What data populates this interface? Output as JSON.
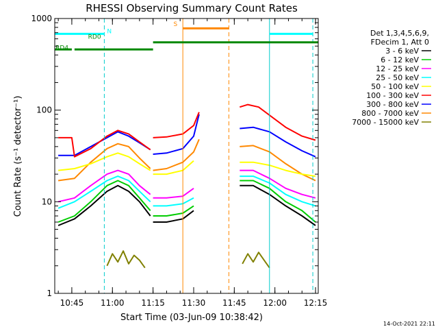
{
  "chart_data": {
    "type": "line",
    "title": "RHESSI Observing Summary Count Rates",
    "xlabel": "Start Time (03-Jun-09 10:38:42)",
    "ylabel": "Count Rate (s⁻¹ detector⁻¹)",
    "yscale": "log",
    "ylim": [
      1,
      1000
    ],
    "xlim": [
      "10:38:42",
      "12:16:00"
    ],
    "yticks": [
      {
        "value": 1,
        "label": "1"
      },
      {
        "value": 10,
        "label": "10"
      },
      {
        "value": 100,
        "label": "100"
      },
      {
        "value": 1000,
        "label": "1000"
      }
    ],
    "xticks": [
      "10:45",
      "11:00",
      "11:15",
      "11:30",
      "11:45",
      "12:00",
      "12:15"
    ],
    "timestamp": "14-Oct-2021 22:11",
    "legend": {
      "placement": "right",
      "header": [
        "Det 1,3,4,5,6,9,",
        "FDecim 1, Att 0"
      ]
    },
    "series": [
      {
        "name": "3 - 6 keV",
        "color": "#000000",
        "segments": [
          {
            "x": [
              "10:40",
              "10:46",
              "10:52",
              "10:58",
              "11:02",
              "11:06",
              "11:10",
              "11:14"
            ],
            "y": [
              5.5,
              6.5,
              9,
              13,
              15,
              13,
              10,
              7
            ]
          },
          {
            "x": [
              "11:15",
              "11:20",
              "11:26",
              "11:30"
            ],
            "y": [
              6,
              6,
              6.5,
              8
            ]
          },
          {
            "x": [
              "11:47",
              "11:52",
              "11:58",
              "12:04",
              "12:10",
              "12:15"
            ],
            "y": [
              15,
              15,
              12,
              9,
              7,
              5.5
            ]
          }
        ]
      },
      {
        "name": "6 - 12 keV",
        "color": "#00cc00",
        "segments": [
          {
            "x": [
              "10:40",
              "10:46",
              "10:52",
              "10:58",
              "11:02",
              "11:06",
              "11:10",
              "11:14"
            ],
            "y": [
              6,
              7,
              10,
              15,
              17,
              15,
              11,
              8
            ]
          },
          {
            "x": [
              "11:15",
              "11:20",
              "11:26",
              "11:30"
            ],
            "y": [
              7,
              7,
              7.5,
              9
            ]
          },
          {
            "x": [
              "11:47",
              "11:52",
              "11:58",
              "12:04",
              "12:10",
              "12:15"
            ],
            "y": [
              17,
              17,
              14,
              10,
              8,
              6
            ]
          }
        ]
      },
      {
        "name": "12 - 25 keV",
        "color": "#ff00ff",
        "segments": [
          {
            "x": [
              "10:40",
              "10:46",
              "10:52",
              "10:58",
              "11:02",
              "11:06",
              "11:10",
              "11:14"
            ],
            "y": [
              10,
              11,
              15,
              20,
              22,
              20,
              15,
              12
            ]
          },
          {
            "x": [
              "11:15",
              "11:20",
              "11:26",
              "11:30"
            ],
            "y": [
              11,
              11,
              11.5,
              14
            ]
          },
          {
            "x": [
              "11:47",
              "11:52",
              "11:58",
              "12:04",
              "12:10",
              "12:15"
            ],
            "y": [
              22,
              22,
              18,
              14,
              12,
              11
            ]
          }
        ]
      },
      {
        "name": "25 - 50 keV",
        "color": "#00ffff",
        "segments": [
          {
            "x": [
              "10:40",
              "10:46",
              "10:52",
              "10:58",
              "11:02",
              "11:06",
              "11:10",
              "11:14"
            ],
            "y": [
              8.5,
              10,
              13,
              17,
              19,
              17,
              13,
              10
            ]
          },
          {
            "x": [
              "11:15",
              "11:20",
              "11:26",
              "11:30"
            ],
            "y": [
              9,
              9,
              9.5,
              11
            ]
          },
          {
            "x": [
              "11:47",
              "11:52",
              "11:58",
              "12:04",
              "12:10",
              "12:15"
            ],
            "y": [
              19,
              19,
              16,
              12,
              10,
              9
            ]
          }
        ]
      },
      {
        "name": "50 - 100 keV",
        "color": "#ffff00",
        "segments": [
          {
            "x": [
              "10:40",
              "10:46",
              "10:52",
              "10:58",
              "11:02",
              "11:06",
              "11:10",
              "11:14"
            ],
            "y": [
              22,
              23,
              26,
              31,
              34,
              31,
              26,
              22
            ]
          },
          {
            "x": [
              "11:15",
              "11:20",
              "11:26",
              "11:30"
            ],
            "y": [
              20,
              20,
              22,
              28
            ]
          },
          {
            "x": [
              "11:47",
              "11:52",
              "11:58",
              "12:04",
              "12:10",
              "12:15"
            ],
            "y": [
              27,
              27,
              25,
              22,
              20,
              19
            ]
          }
        ]
      },
      {
        "name": "100 - 300 keV",
        "color": "#ff0000",
        "segments": [
          {
            "x": [
              "10:40",
              "10:45",
              "10:46",
              "10:52",
              "10:58",
              "11:02",
              "11:06",
              "11:10",
              "11:14"
            ],
            "y": [
              50,
              50,
              31,
              38,
              52,
              60,
              55,
              45,
              37
            ]
          },
          {
            "x": [
              "11:15",
              "11:20",
              "11:26",
              "11:30",
              "11:32"
            ],
            "y": [
              50,
              51,
              55,
              68,
              95
            ]
          },
          {
            "x": [
              "11:47",
              "11:50",
              "11:54",
              "11:58",
              "12:04",
              "12:10",
              "12:15"
            ],
            "y": [
              108,
              115,
              108,
              88,
              65,
              52,
              47
            ]
          }
        ]
      },
      {
        "name": "300 - 800 keV",
        "color": "#0000ff",
        "segments": [
          {
            "x": [
              "10:40",
              "10:46",
              "10:52",
              "10:58",
              "11:02",
              "11:06",
              "11:10",
              "11:14"
            ],
            "y": [
              32,
              32,
              40,
              50,
              58,
              52,
              44,
              37
            ]
          },
          {
            "x": [
              "11:15",
              "11:20",
              "11:26",
              "11:30",
              "11:32"
            ],
            "y": [
              33,
              34,
              38,
              52,
              90
            ]
          },
          {
            "x": [
              "11:47",
              "11:52",
              "11:58",
              "12:04",
              "12:10",
              "12:15"
            ],
            "y": [
              63,
              65,
              58,
              45,
              36,
              31
            ]
          }
        ]
      },
      {
        "name": "800 - 7000 keV",
        "color": "#ff8800",
        "segments": [
          {
            "x": [
              "10:40",
              "10:46",
              "10:52",
              "10:58",
              "11:02",
              "11:06",
              "11:10",
              "11:14"
            ],
            "y": [
              17,
              18,
              27,
              38,
              43,
              40,
              30,
              23
            ]
          },
          {
            "x": [
              "11:15",
              "11:20",
              "11:26",
              "11:30",
              "11:32"
            ],
            "y": [
              22,
              23,
              27,
              35,
              48
            ]
          },
          {
            "x": [
              "11:47",
              "11:52",
              "11:58",
              "12:04",
              "12:10",
              "12:15"
            ],
            "y": [
              40,
              41,
              35,
              26,
              20,
              17
            ]
          }
        ]
      },
      {
        "name": "7000 - 15000 keV",
        "color": "#808000",
        "segments": [
          {
            "x": [
              "10:58",
              "11:00",
              "11:02",
              "11:04",
              "11:06",
              "11:08",
              "11:10",
              "11:12"
            ],
            "y": [
              2.0,
              2.7,
              2.2,
              2.9,
              2.1,
              2.6,
              2.3,
              1.9
            ]
          },
          {
            "x": [
              "11:48",
              "11:50",
              "11:52",
              "11:54",
              "11:56",
              "11:58"
            ],
            "y": [
              2.1,
              2.7,
              2.2,
              2.8,
              2.3,
              1.9
            ]
          }
        ]
      }
    ],
    "annotations": {
      "vlines": [
        {
          "time": "10:38:42",
          "color": "#00cccc",
          "style": "solid"
        },
        {
          "time": "10:57",
          "color": "#00cccc",
          "style": "dashed"
        },
        {
          "time": "11:26",
          "color": "#ff8800",
          "style": "solid"
        },
        {
          "time": "11:43",
          "color": "#ff8800",
          "style": "dashed"
        },
        {
          "time": "11:58",
          "color": "#00cccc",
          "style": "solid"
        },
        {
          "time": "12:14",
          "color": "#00cccc",
          "style": "dashed"
        }
      ],
      "flag_bars": [
        {
          "label": "N",
          "color": "#00ffff",
          "y": 680,
          "spans": [
            [
              "10:38:42",
              "10:57"
            ],
            [
              "11:58",
              "12:14"
            ]
          ]
        },
        {
          "label": "S",
          "color": "#ff8800",
          "y": 780,
          "spans": [
            [
              "11:26",
              "11:43"
            ]
          ]
        },
        {
          "label": "RD0",
          "color": "#008800",
          "y": 550,
          "spans": [
            [
              "11:15",
              "12:16"
            ]
          ]
        },
        {
          "label": "RD4",
          "color": "#008800",
          "y": 460,
          "spans": [
            [
              "10:38:42",
              "10:45"
            ],
            [
              "10:46",
              "11:15"
            ]
          ]
        }
      ]
    }
  }
}
